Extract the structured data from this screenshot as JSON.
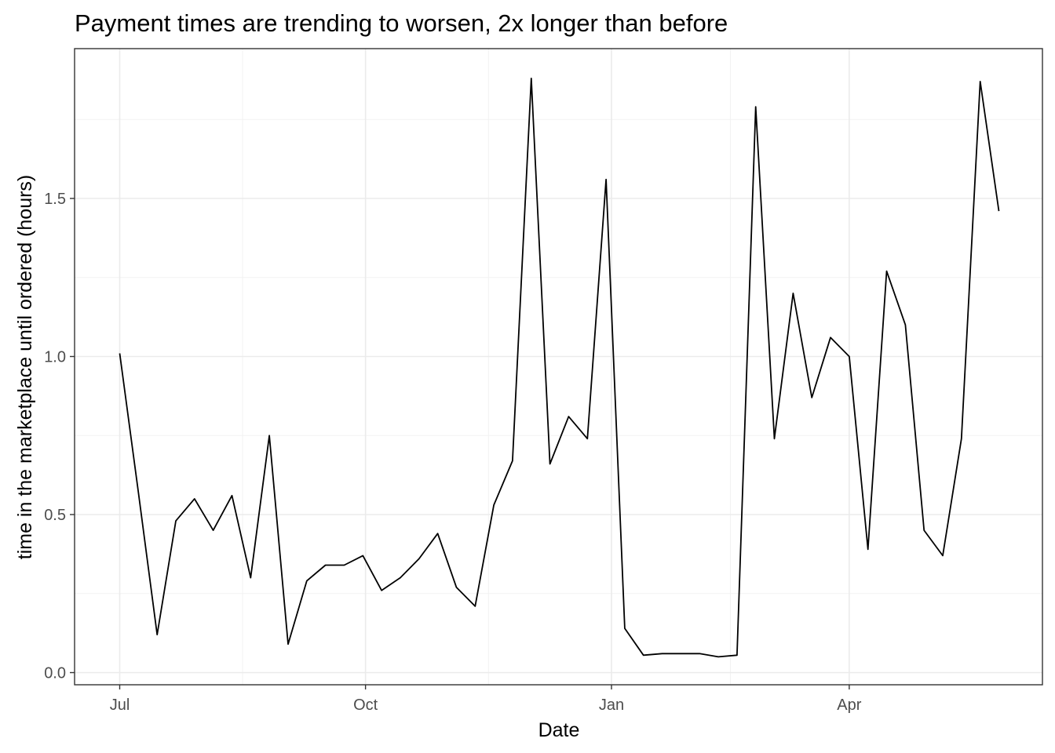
{
  "chart_data": {
    "type": "line",
    "title": "Payment times are trending to worsen, 2x longer than before",
    "xlabel": "Date",
    "ylabel": "time in the marketplace until ordered (hours)",
    "x_ticks": [
      "Jul",
      "Oct",
      "Jan",
      "Apr"
    ],
    "y_ticks": [
      "0.0",
      "0.5",
      "1.0",
      "1.5"
    ],
    "ylim": [
      -0.04,
      1.98
    ],
    "grid": true,
    "x_unit": "weeks since Jul 1",
    "series": [
      {
        "name": "",
        "x": [
          0.0,
          1.0,
          2.0,
          3.0,
          4.0,
          5.0,
          6.0,
          7.0,
          8.0,
          9.0,
          10.0,
          11.0,
          12.0,
          13.0,
          14.0,
          15.0,
          16.0,
          17.0,
          18.0,
          19.0,
          20.0,
          21.0,
          22.0,
          23.0,
          24.0,
          25.0,
          26.0,
          27.0,
          28.0,
          29.0,
          30.0,
          31.0,
          32.0,
          33.0,
          34.0,
          35.0,
          36.0,
          37.0,
          38.0,
          39.0,
          40.0,
          41.0,
          42.0,
          43.0,
          44.0,
          45.0,
          46.0,
          47.0
        ],
        "values": [
          1.01,
          0.57,
          0.12,
          0.48,
          0.55,
          0.45,
          0.56,
          0.3,
          0.75,
          0.09,
          0.29,
          0.34,
          0.34,
          0.37,
          0.26,
          0.3,
          0.36,
          0.44,
          0.27,
          0.21,
          0.53,
          0.67,
          1.88,
          0.66,
          0.81,
          0.74,
          1.56,
          0.14,
          0.055,
          0.06,
          0.06,
          0.06,
          0.05,
          0.055,
          1.79,
          0.74,
          1.2,
          0.87,
          1.06,
          1.0,
          0.39,
          1.27,
          1.1,
          0.45,
          0.37,
          0.74,
          1.87,
          1.46
        ]
      }
    ]
  }
}
